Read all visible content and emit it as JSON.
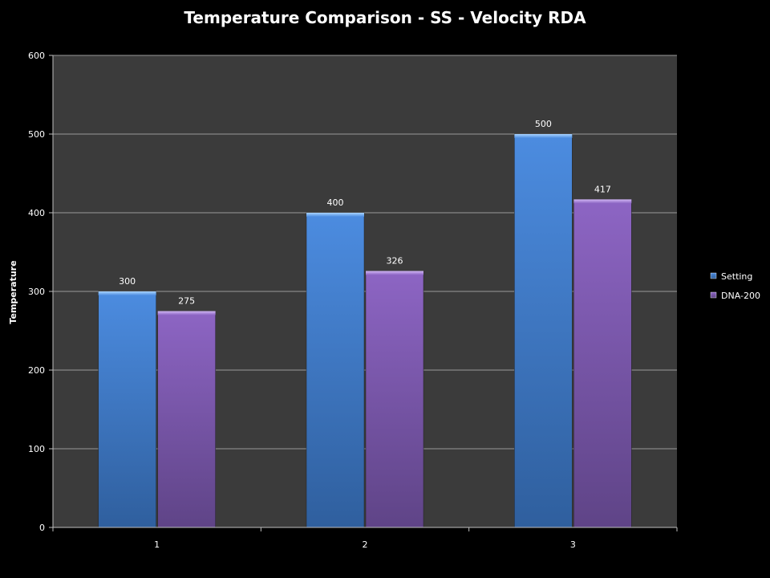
{
  "chart_data": {
    "type": "bar",
    "title": "Temperature Comparison - SS - Velocity RDA",
    "xlabel": "",
    "ylabel": "Temperature",
    "categories": [
      "1",
      "2",
      "3"
    ],
    "series": [
      {
        "name": "Setting",
        "values": [
          300,
          400,
          500
        ],
        "color": "#4a88dd"
      },
      {
        "name": "DNA-200",
        "values": [
          275,
          326,
          417
        ],
        "color": "#8a62c0"
      }
    ],
    "ylim": [
      0,
      600
    ],
    "yticks": [
      "0",
      "100",
      "200",
      "300",
      "400",
      "500",
      "600"
    ],
    "grid": true,
    "legend": "right",
    "plot_background": "#3b3b3b",
    "page_background": "#000000"
  }
}
